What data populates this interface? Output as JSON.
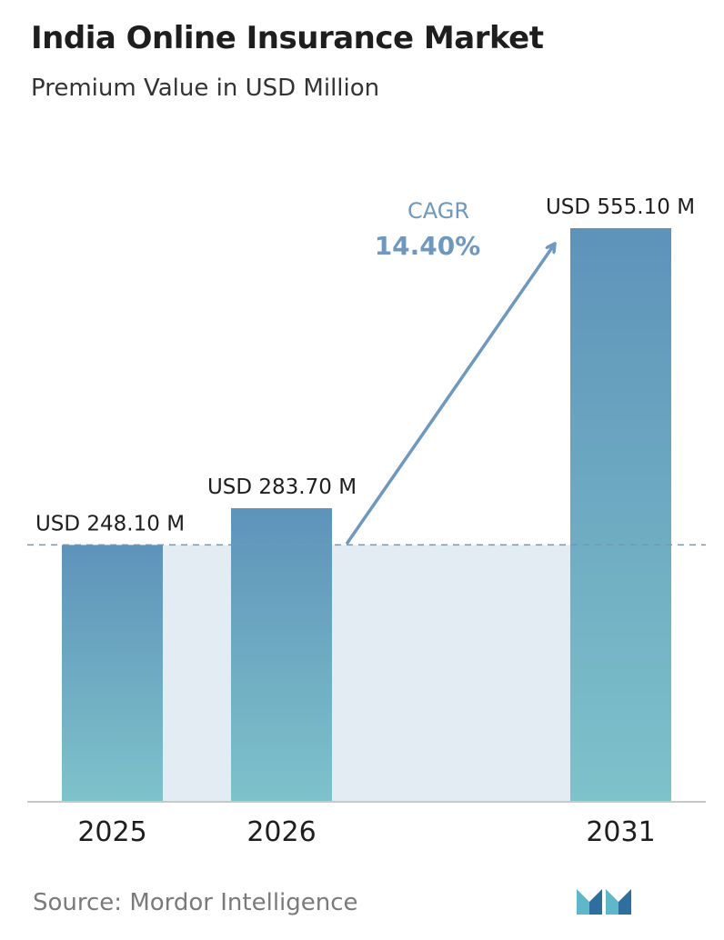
{
  "header": {
    "title": "India Online Insurance Market",
    "subtitle": "Premium Value in USD Million"
  },
  "chart_data": {
    "type": "bar",
    "title": "India Online Insurance Market",
    "subtitle": "Premium Value in USD Million",
    "categories": [
      "2025",
      "2026",
      "2031"
    ],
    "values": [
      248.1,
      283.7,
      555.1
    ],
    "data_labels": [
      "USD 248.10 M",
      "USD 283.70 M",
      "USD 555.10 M"
    ],
    "xlabel": "",
    "ylabel": "",
    "ylim": [
      0,
      555.1
    ],
    "grid": false,
    "legend": "none",
    "reference_line": {
      "value": 248.1,
      "style": "dashed"
    },
    "annotation": {
      "label": "CAGR",
      "value": "14.40%",
      "from": "2026",
      "to": "2031"
    }
  },
  "colors": {
    "bar_top": "#5e93ba",
    "bar_bottom": "#7ec2ca",
    "shade": "#e3ecf3",
    "arrow": "#6f98bf",
    "cagr_text": "#6f98bf",
    "axis": "#c8c8c8",
    "dashed_line": "#6f98bf"
  },
  "footer": {
    "source": "Source:  Mordor Intelligence",
    "logo_icon": "mordor-intelligence-logo-icon"
  }
}
